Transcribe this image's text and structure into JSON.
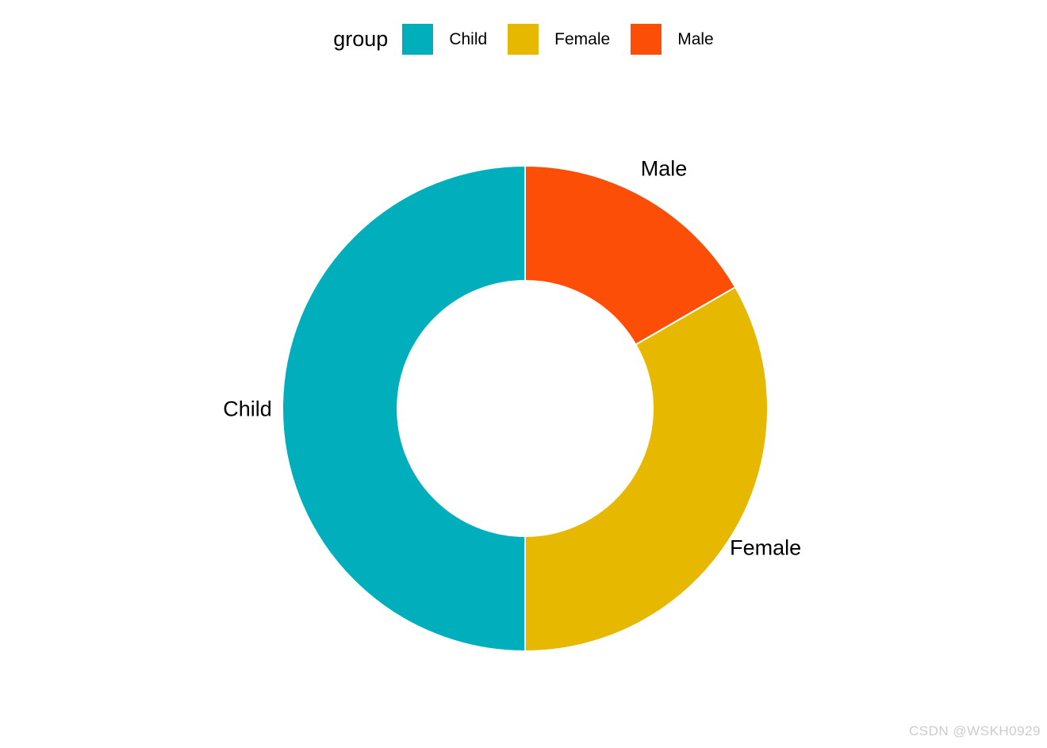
{
  "page": {
    "background": "#ffffff",
    "watermark": "CSDN @WSKH0929"
  },
  "legend": {
    "title": "group",
    "items": [
      {
        "label": "Child",
        "color": "#00AFBB"
      },
      {
        "label": "Female",
        "color": "#E7B800"
      },
      {
        "label": "Male",
        "color": "#FC4E07"
      }
    ]
  },
  "chart_data": {
    "type": "pie",
    "subtype": "donut",
    "title": "",
    "legend_title": "group",
    "legend_position": "top",
    "categories": [
      "Child",
      "Female",
      "Male"
    ],
    "values": [
      50,
      33.33,
      16.67
    ],
    "unit": "percent",
    "colors": [
      "#00AFBB",
      "#E7B800",
      "#FC4E07"
    ],
    "slices_clockwise_from_top": [
      {
        "label": "Male",
        "value": 16.67,
        "color": "#FC4E07"
      },
      {
        "label": "Female",
        "value": 33.33,
        "color": "#E7B800"
      },
      {
        "label": "Child",
        "value": 50,
        "color": "#00AFBB"
      }
    ],
    "slice_labels_outside": true,
    "separator_color": "#ffffff"
  }
}
